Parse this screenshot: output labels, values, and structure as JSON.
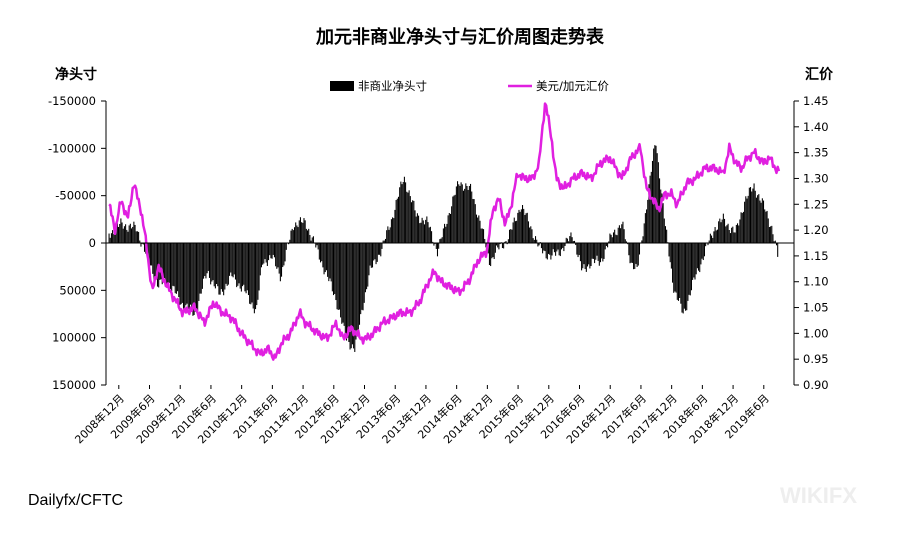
{
  "watermark": "WIKIFX",
  "chart_data": {
    "type": "bar+line",
    "title": "加元非商业净头寸与汇价周图走势表",
    "source": "Dailyfx/CFTC",
    "y_left": {
      "label": "净头寸",
      "reversed": true,
      "ylim": [
        -150000,
        150000
      ],
      "ticks": [
        -150000,
        -100000,
        -50000,
        0,
        50000,
        100000,
        150000
      ],
      "tick_labels": [
        "-150000",
        "-100000",
        "-50000",
        "0",
        "50000",
        "100000",
        "150000"
      ]
    },
    "y_right": {
      "label": "汇价",
      "ylim": [
        0.9,
        1.45
      ],
      "ticks": [
        0.9,
        0.95,
        1.0,
        1.05,
        1.1,
        1.15,
        1.2,
        1.25,
        1.3,
        1.35,
        1.4,
        1.45
      ],
      "tick_labels": [
        "0.90",
        "0.95",
        "1.00",
        "1.05",
        "1.10",
        "1.15",
        "1.20",
        "1.25",
        "1.30",
        "1.35",
        "1.40",
        "1.45"
      ]
    },
    "x_tick_labels": [
      "2008年12月",
      "2009年6月",
      "2009年12月",
      "2010年6月",
      "2010年12月",
      "2011年6月",
      "2011年12月",
      "2012年6月",
      "2012年12月",
      "2013年6月",
      "2013年12月",
      "2014年6月",
      "2014年12月",
      "2015年6月",
      "2015年12月",
      "2016年6月",
      "2016年12月",
      "2017年6月",
      "2017年12月",
      "2018年6月",
      "2018年12月",
      "2019年6月"
    ],
    "legend_position": "top",
    "series": [
      {
        "name": "非商业净头寸",
        "axis": "left",
        "style": "bar",
        "color": "#000000",
        "x": [
          2008.8,
          2009.0,
          2009.25,
          2009.45,
          2009.6,
          2009.75,
          2010.0,
          2010.2,
          2010.4,
          2010.6,
          2010.8,
          2011.0,
          2011.2,
          2011.3,
          2011.45,
          2011.6,
          2011.8,
          2012.0,
          2012.2,
          2012.35,
          2012.5,
          2012.65,
          2012.8,
          2012.95,
          2013.05,
          2013.25,
          2013.4,
          2013.6,
          2013.8,
          2014.0,
          2014.15,
          2014.3,
          2014.5,
          2014.7,
          2014.85,
          2015.0,
          2015.15,
          2015.3,
          2015.5,
          2015.65,
          2015.8,
          2016.0,
          2016.2,
          2016.35,
          2016.5,
          2016.65,
          2016.8,
          2017.0,
          2017.15,
          2017.3,
          2017.4,
          2017.55,
          2017.7,
          2017.85,
          2018.0,
          2018.15,
          2018.35,
          2018.5,
          2018.65,
          2018.8,
          2019.0,
          2019.15,
          2019.3,
          2019.45,
          2019.6,
          2019.7
        ],
        "values": [
          -10000,
          -20000,
          -15000,
          20000,
          45000,
          40000,
          65000,
          75000,
          30000,
          55000,
          35000,
          50000,
          72000,
          20000,
          15000,
          35000,
          -20000,
          -22000,
          10000,
          35000,
          60000,
          100000,
          112000,
          60000,
          30000,
          5000,
          -25000,
          -70000,
          -30000,
          -20000,
          10000,
          -25000,
          -65000,
          -55000,
          -20000,
          20000,
          5000,
          -5000,
          -40000,
          -20000,
          5000,
          15000,
          5000,
          -10000,
          30000,
          20000,
          20000,
          -10000,
          -20000,
          20000,
          30000,
          -40000,
          -110000,
          -20000,
          50000,
          75000,
          35000,
          10000,
          -15000,
          -25000,
          -10000,
          -45000,
          -60000,
          -40000,
          -15000,
          20000
        ]
      },
      {
        "name": "美元/加元汇价",
        "axis": "right",
        "style": "line",
        "color": "#e020e0",
        "x": [
          2008.8,
          2008.9,
          2009.0,
          2009.1,
          2009.2,
          2009.3,
          2009.4,
          2009.5,
          2009.6,
          2009.75,
          2009.9,
          2010.0,
          2010.2,
          2010.35,
          2010.5,
          2010.65,
          2010.8,
          2010.95,
          2011.1,
          2011.25,
          2011.4,
          2011.5,
          2011.6,
          2011.75,
          2011.9,
          2012.0,
          2012.2,
          2012.35,
          2012.5,
          2012.6,
          2012.75,
          2012.9,
          2013.0,
          2013.1,
          2013.25,
          2013.4,
          2013.55,
          2013.7,
          2013.85,
          2014.0,
          2014.1,
          2014.2,
          2014.35,
          2014.5,
          2014.65,
          2014.8,
          2014.95,
          2015.05,
          2015.15,
          2015.25,
          2015.35,
          2015.45,
          2015.55,
          2015.7,
          2015.8,
          2015.9,
          2016.0,
          2016.08,
          2016.2,
          2016.35,
          2016.5,
          2016.65,
          2016.8,
          2016.95,
          2017.05,
          2017.15,
          2017.3,
          2017.45,
          2017.55,
          2017.65,
          2017.75,
          2017.85,
          2017.95,
          2018.05,
          2018.2,
          2018.35,
          2018.5,
          2018.65,
          2018.8,
          2018.9,
          2019.0,
          2019.1,
          2019.2,
          2019.3,
          2019.45,
          2019.55,
          2019.65,
          2019.72
        ],
        "values": [
          1.25,
          1.2,
          1.26,
          1.22,
          1.29,
          1.25,
          1.18,
          1.08,
          1.13,
          1.09,
          1.06,
          1.04,
          1.05,
          1.02,
          1.06,
          1.04,
          1.03,
          1.0,
          0.98,
          0.96,
          0.97,
          0.95,
          0.98,
          1.0,
          1.04,
          1.02,
          1.0,
          0.99,
          1.02,
          0.99,
          1.01,
          0.99,
          0.99,
          1.0,
          1.02,
          1.03,
          1.04,
          1.04,
          1.06,
          1.1,
          1.12,
          1.1,
          1.09,
          1.08,
          1.1,
          1.14,
          1.16,
          1.24,
          1.26,
          1.21,
          1.25,
          1.31,
          1.3,
          1.3,
          1.33,
          1.45,
          1.38,
          1.3,
          1.28,
          1.3,
          1.31,
          1.3,
          1.33,
          1.34,
          1.32,
          1.3,
          1.34,
          1.36,
          1.28,
          1.26,
          1.24,
          1.27,
          1.27,
          1.25,
          1.29,
          1.3,
          1.32,
          1.32,
          1.31,
          1.36,
          1.33,
          1.32,
          1.34,
          1.35,
          1.33,
          1.34,
          1.32,
          1.31
        ]
      }
    ]
  }
}
